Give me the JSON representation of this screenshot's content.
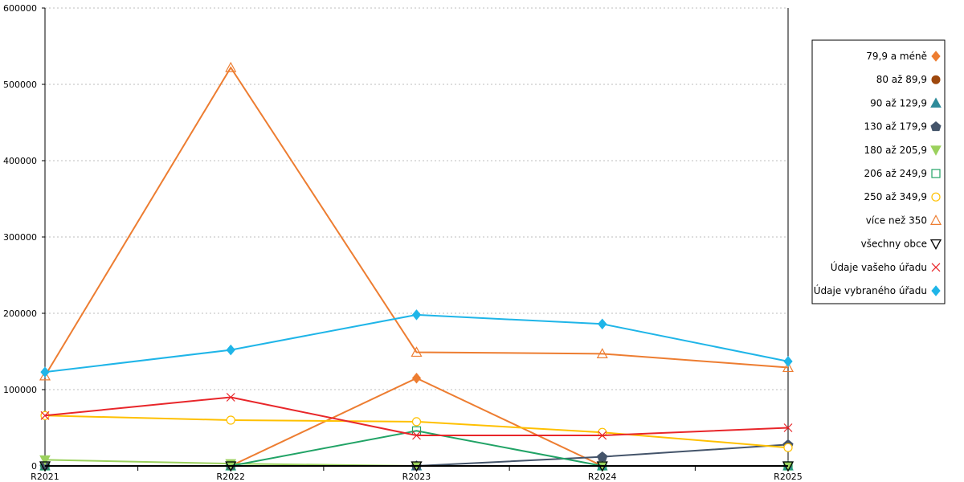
{
  "chart_data": {
    "type": "line",
    "categories": [
      "R2021",
      "R2022",
      "R2023",
      "R2024",
      "R2025"
    ],
    "ylim": [
      0,
      600000
    ],
    "yticks": [
      0,
      100000,
      200000,
      300000,
      400000,
      500000,
      600000
    ],
    "ytick_labels": [
      "0",
      "100000",
      "200000",
      "300000",
      "400000",
      "500000",
      "600000"
    ],
    "grid": true,
    "legend_position": "right",
    "series": [
      {
        "name": "79,9 a méně",
        "color": "#ed7d31",
        "marker": "diamond-filled",
        "values": [
          0,
          0,
          115000,
          0,
          0
        ]
      },
      {
        "name": "80 až 89,9",
        "color": "#9e480e",
        "marker": "circle-filled",
        "values": [
          0,
          0,
          0,
          0,
          0
        ]
      },
      {
        "name": "90 až 129,9",
        "color": "#2e8b9a",
        "marker": "triangle-up-filled",
        "values": [
          0,
          0,
          0,
          0,
          0
        ]
      },
      {
        "name": "130 až 179,9",
        "color": "#44546a",
        "marker": "pentagon-filled",
        "values": [
          0,
          0,
          0,
          12000,
          28000
        ]
      },
      {
        "name": "180 až 205,9",
        "color": "#9bd15d",
        "marker": "triangle-down-filled",
        "values": [
          8000,
          3000,
          0,
          0,
          0
        ]
      },
      {
        "name": "206 až 249,9",
        "color": "#21a366",
        "marker": "square-open",
        "values": [
          0,
          0,
          46000,
          0,
          0
        ]
      },
      {
        "name": "250 až 349,9",
        "color": "#ffc000",
        "marker": "circle-open",
        "values": [
          66000,
          60000,
          58000,
          44000,
          24000
        ]
      },
      {
        "name": "více než 350",
        "color": "#ed7d31",
        "marker": "triangle-up-open",
        "values": [
          118000,
          522000,
          149000,
          147000,
          129000
        ]
      },
      {
        "name": "všechny obce",
        "color": "#000000",
        "marker": "triangle-down-open",
        "values": [
          0,
          0,
          0,
          0,
          0
        ]
      },
      {
        "name": "Údaje vašeho úřadu",
        "color": "#e8262a",
        "marker": "x",
        "values": [
          66000,
          90000,
          40000,
          40000,
          50000
        ]
      },
      {
        "name": "Údaje vybraného úřadu",
        "color": "#1fb5e8",
        "marker": "diamond-filled",
        "values": [
          123000,
          152000,
          198000,
          186000,
          137000
        ]
      }
    ]
  }
}
